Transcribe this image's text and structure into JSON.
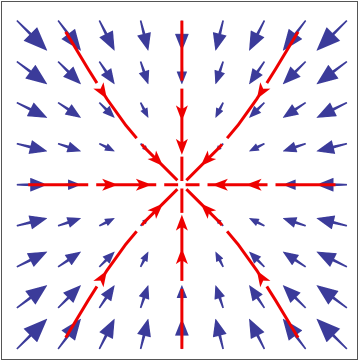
{
  "chart_data": {
    "type": "quiver",
    "x": [
      -4,
      -3,
      -2,
      -1,
      0,
      1,
      2,
      3,
      4
    ],
    "y": [
      4,
      3,
      2,
      1,
      0,
      -1,
      -2,
      -3,
      -4
    ],
    "u": [
      [
        4,
        3,
        2,
        1,
        0,
        -1,
        -2,
        -3,
        -4
      ],
      [
        4,
        3,
        2,
        1,
        0,
        -1,
        -2,
        -3,
        -4
      ],
      [
        4,
        3,
        2,
        1,
        0,
        -1,
        -2,
        -3,
        -4
      ],
      [
        4,
        3,
        2,
        1,
        0,
        -1,
        -2,
        -3,
        -4
      ],
      [
        4,
        3,
        2,
        1,
        0,
        -1,
        -2,
        -3,
        -4
      ],
      [
        4,
        3,
        2,
        1,
        0,
        -1,
        -2,
        -3,
        -4
      ],
      [
        4,
        3,
        2,
        1,
        0,
        -1,
        -2,
        -3,
        -4
      ],
      [
        4,
        3,
        2,
        1,
        0,
        -1,
        -2,
        -3,
        -4
      ],
      [
        4,
        3,
        2,
        1,
        0,
        -1,
        -2,
        -3,
        -4
      ]
    ],
    "v": [
      [
        -4,
        -4,
        -4,
        -4,
        -4,
        -4,
        -4,
        -4,
        -4
      ],
      [
        -3,
        -3,
        -3,
        -3,
        -3,
        -3,
        -3,
        -3,
        -3
      ],
      [
        -2,
        -2,
        -2,
        -2,
        -2,
        -2,
        -2,
        -2,
        -2
      ],
      [
        -1,
        -1,
        -1,
        -1,
        -1,
        -1,
        -1,
        -1,
        -1
      ],
      [
        0,
        0,
        0,
        0,
        0,
        0,
        0,
        0,
        0
      ],
      [
        1,
        1,
        1,
        1,
        1,
        1,
        1,
        1,
        1
      ],
      [
        2,
        2,
        2,
        2,
        2,
        2,
        2,
        2,
        2
      ],
      [
        3,
        3,
        3,
        3,
        3,
        3,
        3,
        3,
        3
      ],
      [
        4,
        4,
        4,
        4,
        4,
        4,
        4,
        4,
        4
      ]
    ],
    "color": "#3b3b9a",
    "trajectory_color": "#ee0000",
    "trajectories": [
      {
        "x": [
          -3.1,
          -2.5,
          -2,
          -1.5,
          -1,
          -0.5,
          -0.12
        ],
        "y": [
          4.1,
          3.1,
          2.3,
          1.6,
          1.0,
          0.5,
          0.12
        ]
      },
      {
        "x": [
          3.1,
          2.5,
          2,
          1.5,
          1,
          0.5,
          0.12
        ],
        "y": [
          4.1,
          3.1,
          2.3,
          1.6,
          1.0,
          0.5,
          0.12
        ]
      },
      {
        "x": [
          -3.1,
          -2.5,
          -2,
          -1.5,
          -1,
          -0.5,
          -0.12
        ],
        "y": [
          -4.1,
          -3.1,
          -2.3,
          -1.6,
          -1.0,
          -0.5,
          -0.12
        ]
      },
      {
        "x": [
          3.1,
          2.5,
          2,
          1.5,
          1,
          0.5,
          0.12
        ],
        "y": [
          -4.1,
          -3.1,
          -2.3,
          -1.6,
          -1.0,
          -0.5,
          -0.12
        ]
      },
      {
        "x": [
          0,
          0,
          0,
          0,
          0
        ],
        "y": [
          4.4,
          3,
          1.7,
          0.8,
          0.1
        ]
      },
      {
        "x": [
          0,
          0,
          0,
          0,
          0
        ],
        "y": [
          -4.4,
          -3,
          -1.7,
          -0.8,
          -0.1
        ]
      },
      {
        "x": [
          -4.1,
          -3,
          -1.7,
          -0.8,
          -0.1
        ],
        "y": [
          0,
          0,
          0,
          0,
          0
        ]
      },
      {
        "x": [
          4.1,
          3,
          1.7,
          0.8,
          0.1
        ],
        "y": [
          0,
          0,
          0,
          0,
          0
        ]
      }
    ],
    "xlim": [
      -4.8,
      4.7
    ],
    "ylim": [
      -4.7,
      4.9
    ]
  }
}
